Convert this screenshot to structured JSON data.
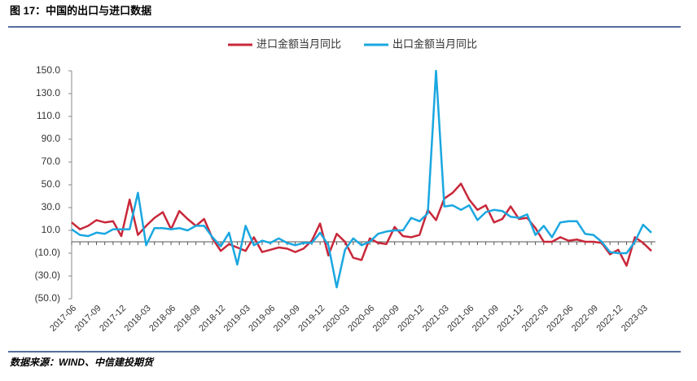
{
  "chart_data": {
    "type": "line",
    "title": "图 17：中国的出口与进口数据",
    "source": "数据来源：WIND、中信建投期货",
    "categories": [
      "2017-06",
      null,
      null,
      "2017-09",
      null,
      null,
      "2017-12",
      null,
      null,
      "2018-03",
      null,
      null,
      "2018-06",
      null,
      null,
      "2018-09",
      null,
      null,
      "2018-12",
      null,
      null,
      "2019-03",
      null,
      null,
      "2019-06",
      null,
      null,
      "2019-09",
      null,
      null,
      "2019-12",
      null,
      null,
      "2020-03",
      null,
      null,
      "2020-06",
      null,
      null,
      "2020-09",
      null,
      null,
      "2020-12",
      null,
      null,
      "2021-03",
      null,
      null,
      "2021-06",
      null,
      null,
      "2021-09",
      null,
      null,
      "2021-12",
      null,
      null,
      "2022-03",
      null,
      null,
      "2022-06",
      null,
      null,
      "2022-09",
      null,
      null,
      "2022-12",
      null,
      null,
      "2023-03",
      null
    ],
    "series": [
      {
        "name": "进口金额当月同比",
        "color": "#c8283a",
        "values": [
          17,
          11,
          14,
          19,
          17,
          18,
          5,
          37,
          6,
          14,
          21,
          26,
          11,
          27,
          20,
          14,
          20,
          3,
          -8,
          -2,
          -5,
          -8,
          4,
          -9,
          -7,
          -5,
          -6,
          -9,
          -6,
          1,
          16,
          -12,
          7,
          0,
          -14,
          -16,
          3,
          -1,
          -2,
          13,
          5,
          4,
          6,
          28,
          19,
          38,
          43,
          51,
          37,
          28,
          32,
          17,
          20,
          31,
          20,
          21,
          12,
          0,
          0,
          4,
          1,
          2,
          0,
          0,
          -1,
          -11,
          -7,
          -21,
          4,
          -1,
          -8
        ]
      },
      {
        "name": "出口金额当月同比",
        "color": "#1aa7e0",
        "values": [
          11,
          6,
          5,
          8,
          7,
          11,
          11,
          11,
          43,
          -3,
          12,
          12,
          11,
          12,
          10,
          14,
          14,
          4,
          -4,
          8,
          -20,
          14,
          -3,
          1,
          -1,
          3,
          -1,
          -3,
          -1,
          -1,
          8,
          -3,
          -40,
          -7,
          3,
          -3,
          0,
          7,
          9,
          10,
          10,
          21,
          18,
          25,
          150,
          31,
          32,
          28,
          32,
          19,
          26,
          28,
          27,
          22,
          21,
          24,
          6,
          14,
          4,
          17,
          18,
          18,
          7,
          6,
          0,
          -9,
          -10,
          -10,
          0,
          15,
          8
        ]
      }
    ],
    "ylim": [
      -50,
      150
    ],
    "yticks": [
      {
        "value": -50,
        "label": "(50.0)"
      },
      {
        "value": -30,
        "label": "(30.0)"
      },
      {
        "value": -10,
        "label": "(10.0)"
      },
      {
        "value": 10,
        "label": "10.0"
      },
      {
        "value": 30,
        "label": "30.0"
      },
      {
        "value": 50,
        "label": "50.0"
      },
      {
        "value": 70,
        "label": "70.0"
      },
      {
        "value": 90,
        "label": "90.0"
      },
      {
        "value": 110,
        "label": "110.0"
      },
      {
        "value": 130,
        "label": "130.0"
      },
      {
        "value": 150,
        "label": "150.0"
      }
    ],
    "grid": false,
    "legend": "top"
  }
}
